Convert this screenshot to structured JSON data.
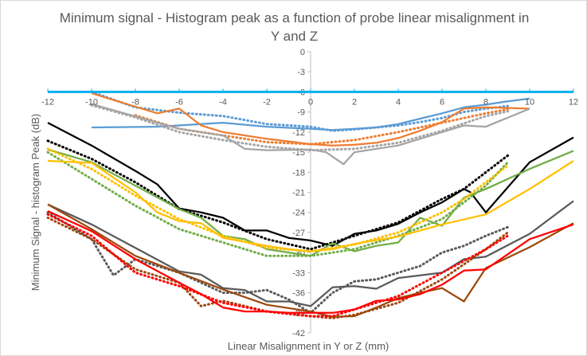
{
  "chart_data": {
    "type": "line",
    "title_line1": "Minimum signal - Histogram peak as a function of probe linear misalignment in",
    "title_line2": "Y and Z",
    "xlabel": "Linear Misalignment in Y or Z (mm)",
    "ylabel": "Minimum Signal - histogram Peak (dB)",
    "xlim": [
      -12,
      12
    ],
    "ylim": [
      -42,
      0
    ],
    "x_ticks": [
      "-12",
      "-10",
      "-8",
      "-6",
      "-4",
      "-2",
      "0",
      "2",
      "4",
      "6",
      "8",
      "10",
      "12"
    ],
    "y_ticks": [
      "0",
      "-3",
      "-6",
      "-9",
      "-12",
      "-15",
      "-18",
      "-21",
      "-24",
      "-27",
      "-30",
      "-33",
      "-36",
      "-39",
      "-42"
    ],
    "x_axis_crossing_y": -6,
    "grid": false,
    "legend": "none",
    "series": [
      {
        "color": "#5b9bd5",
        "dash": "solid",
        "x": [
          -10,
          -7,
          -4,
          -2,
          0,
          1,
          2,
          3,
          4,
          5,
          6,
          7,
          8,
          9,
          10
        ],
        "y": [
          -11.3,
          -11.2,
          -10.6,
          -11.2,
          -11.5,
          -11.7,
          -11.5,
          -11.3,
          -10.8,
          -10.0,
          -9.2,
          -8.3,
          -7.9,
          -7.4,
          -7.0
        ]
      },
      {
        "color": "#5b9bd5",
        "dash": "dot",
        "x": [
          -10,
          -8,
          -6,
          -4,
          -2,
          0,
          1,
          2,
          3,
          4,
          5,
          6,
          7,
          8,
          9
        ],
        "y": [
          -6.0,
          -8.3,
          -9.1,
          -9.6,
          -10.8,
          -11.2,
          -11.8,
          -11.6,
          -11.3,
          -11.0,
          -10.5,
          -9.9,
          -9.0,
          -8.5,
          -8.1
        ]
      },
      {
        "color": "#ed7d31",
        "dash": "solid",
        "x": [
          -10,
          -7,
          -6,
          -5,
          -4,
          -2,
          0,
          1,
          2,
          3,
          4,
          5,
          6,
          7,
          8,
          10
        ],
        "y": [
          -6.2,
          -9.2,
          -8.5,
          -11.0,
          -12.0,
          -13.0,
          -13.8,
          -14.0,
          -13.9,
          -13.6,
          -12.9,
          -11.8,
          -10.5,
          -8.5,
          -8.3,
          -8.5
        ]
      },
      {
        "color": "#ed7d31",
        "dash": "dot",
        "x": [
          -8,
          -6,
          -4,
          -2,
          0,
          2,
          4,
          6,
          8,
          9
        ],
        "y": [
          -9.5,
          -11.5,
          -12.5,
          -13.5,
          -13.8,
          -13.2,
          -12.0,
          -10.6,
          -9.2,
          -8.6
        ]
      },
      {
        "color": "#a5a5a5",
        "dash": "solid",
        "x": [
          -10,
          -6,
          -4,
          -3,
          -2,
          0,
          0.7,
          1.5,
          2,
          4,
          6,
          7,
          8,
          10
        ],
        "y": [
          -7.8,
          -11.5,
          -12.5,
          -14.5,
          -14.7,
          -14.6,
          -15.0,
          -16.8,
          -15.0,
          -14.0,
          -12.0,
          -11.0,
          -11.2,
          -8.5
        ]
      },
      {
        "color": "#a5a5a5",
        "dash": "dot",
        "x": [
          -10,
          -8,
          -6,
          -4,
          -2,
          0,
          2,
          4,
          6,
          8,
          9
        ],
        "y": [
          -8.0,
          -9.8,
          -12.0,
          -13.2,
          -14.2,
          -14.7,
          -14.5,
          -13.6,
          -11.8,
          -9.6,
          -8.9
        ]
      },
      {
        "color": "#000000",
        "dash": "solid",
        "x": [
          -12,
          -10,
          -8,
          -7,
          -6,
          -5,
          -4,
          -3,
          -2,
          -1,
          0,
          1,
          2,
          3,
          4,
          5,
          6,
          7,
          7.3,
          8,
          10,
          12
        ],
        "y": [
          -10.6,
          -14.0,
          -17.8,
          -19.8,
          -23.4,
          -24.0,
          -24.8,
          -26.7,
          -26.7,
          -27.8,
          -28.2,
          -29.0,
          -27.2,
          -26.7,
          -25.7,
          -24.0,
          -22.5,
          -20.5,
          -21.0,
          -24.0,
          -16.5,
          -12.8
        ]
      },
      {
        "color": "#000000",
        "dash": "dot",
        "x": [
          -12,
          -10,
          -8,
          -6,
          -4,
          -2,
          0,
          2,
          4,
          6,
          7,
          8,
          9
        ],
        "y": [
          -13.3,
          -16.0,
          -19.5,
          -23.5,
          -25.5,
          -28.0,
          -29.5,
          -27.5,
          -25.5,
          -22.0,
          -20.5,
          -18.0,
          -15.5
        ]
      },
      {
        "color": "#70ad47",
        "dash": "solid",
        "x": [
          -12,
          -10,
          -8,
          -6,
          -5,
          -4,
          -3,
          -2,
          -1,
          0,
          1,
          2,
          3,
          4,
          5,
          6,
          7,
          8,
          10,
          12
        ],
        "y": [
          -14.6,
          -16.5,
          -20.0,
          -23.5,
          -24.8,
          -27.5,
          -28.0,
          -29.5,
          -30.0,
          -30.5,
          -28.6,
          -29.8,
          -29.0,
          -28.5,
          -24.8,
          -26.0,
          -21.8,
          -20.5,
          -17.5,
          -14.8
        ]
      },
      {
        "color": "#70ad47",
        "dash": "dot",
        "x": [
          -12,
          -10,
          -8,
          -6,
          -4,
          -2,
          0,
          2,
          4,
          6,
          7,
          8,
          9
        ],
        "y": [
          -15.0,
          -19.0,
          -23.0,
          -26.5,
          -28.5,
          -30.5,
          -30.5,
          -29.5,
          -27.5,
          -25.0,
          -22.5,
          -20.0,
          -16.5
        ]
      },
      {
        "color": "#ffc000",
        "dash": "solid",
        "x": [
          -12,
          -10,
          -8,
          -7,
          -6,
          -5,
          -4,
          -3,
          -2,
          -1,
          0,
          1,
          2,
          4,
          6,
          8,
          10,
          12
        ],
        "y": [
          -16.3,
          -16.6,
          -21.0,
          -24.0,
          -25.3,
          -25.6,
          -27.8,
          -28.4,
          -29.0,
          -29.5,
          -29.8,
          -29.5,
          -28.7,
          -27.6,
          -25.8,
          -24.3,
          -20.5,
          -16.3
        ]
      },
      {
        "color": "#ffc000",
        "dash": "dot",
        "x": [
          -12,
          -10,
          -8,
          -6,
          -4,
          -2,
          0,
          2,
          4,
          6,
          7,
          8,
          9
        ],
        "y": [
          -14.5,
          -17.5,
          -21.5,
          -25.0,
          -27.5,
          -29.3,
          -29.8,
          -28.8,
          -27.0,
          -24.0,
          -22.0,
          -19.5,
          -17.0
        ]
      },
      {
        "color": "#5a5a5a",
        "dash": "solid",
        "x": [
          -12,
          -10,
          -8,
          -6,
          -5,
          -4,
          -3,
          -2,
          -1,
          0,
          1,
          2,
          3,
          4,
          6,
          7,
          8,
          10,
          12
        ],
        "y": [
          -22.8,
          -25.8,
          -29.3,
          -32.8,
          -33.3,
          -35.3,
          -35.6,
          -37.3,
          -37.3,
          -38.0,
          -35.2,
          -35.0,
          -35.4,
          -33.8,
          -33.0,
          -31.0,
          -30.6,
          -27.2,
          -22.3
        ]
      },
      {
        "color": "#5a5a5a",
        "dash": "dot",
        "x": [
          -12,
          -10,
          -9,
          -8,
          -6,
          -4,
          -3,
          -2,
          -1,
          0,
          1,
          2,
          3,
          4,
          5,
          6,
          7,
          8,
          9
        ],
        "y": [
          -24.0,
          -28.0,
          -33.4,
          -31.0,
          -33.0,
          -36.0,
          -36.0,
          -35.6,
          -37.0,
          -39.0,
          -36.0,
          -34.3,
          -34.0,
          -33.0,
          -32.0,
          -30.0,
          -29.0,
          -27.5,
          -26.2
        ]
      },
      {
        "color": "#9e480e",
        "dash": "solid",
        "x": [
          -12,
          -10,
          -8,
          -6,
          -4,
          -2,
          0,
          1,
          2,
          3,
          4,
          5,
          6,
          7,
          8,
          10,
          12
        ],
        "y": [
          -22.8,
          -26.5,
          -30.5,
          -33.0,
          -35.5,
          -37.8,
          -38.8,
          -39.6,
          -39.5,
          -38.2,
          -36.8,
          -36.0,
          -35.3,
          -37.3,
          -32.3,
          -29.2,
          -25.6
        ]
      },
      {
        "color": "#9e480e",
        "dash": "dot",
        "x": [
          -12,
          -10,
          -8,
          -6,
          -5,
          -4,
          -2,
          0,
          1,
          2,
          4,
          6,
          8,
          9
        ],
        "y": [
          -24.8,
          -28.0,
          -32.5,
          -34.5,
          -38.0,
          -37.2,
          -38.8,
          -39.5,
          -39.8,
          -39.3,
          -37.5,
          -34.0,
          -29.5,
          -27.0
        ]
      },
      {
        "color": "#ff0000",
        "dash": "solid",
        "x": [
          -12,
          -10,
          -8,
          -6,
          -5,
          -4,
          -3,
          -2,
          -1,
          0,
          1,
          2,
          3,
          4,
          5,
          6,
          7,
          8,
          10,
          12
        ],
        "y": [
          -23.8,
          -26.8,
          -31.0,
          -34.5,
          -36.2,
          -38.2,
          -38.8,
          -38.8,
          -39.0,
          -39.0,
          -39.0,
          -38.5,
          -37.2,
          -37.0,
          -36.2,
          -34.8,
          -32.7,
          -32.5,
          -28.0,
          -25.8
        ]
      },
      {
        "color": "#ff0000",
        "dash": "dot",
        "x": [
          -12,
          -10,
          -8,
          -6,
          -4,
          -2,
          0,
          1,
          2,
          4,
          6,
          8,
          9
        ],
        "y": [
          -24.3,
          -27.5,
          -33.0,
          -35.0,
          -37.5,
          -38.8,
          -39.5,
          -39.5,
          -38.5,
          -36.5,
          -33.0,
          -29.5,
          -27.5
        ]
      }
    ]
  }
}
